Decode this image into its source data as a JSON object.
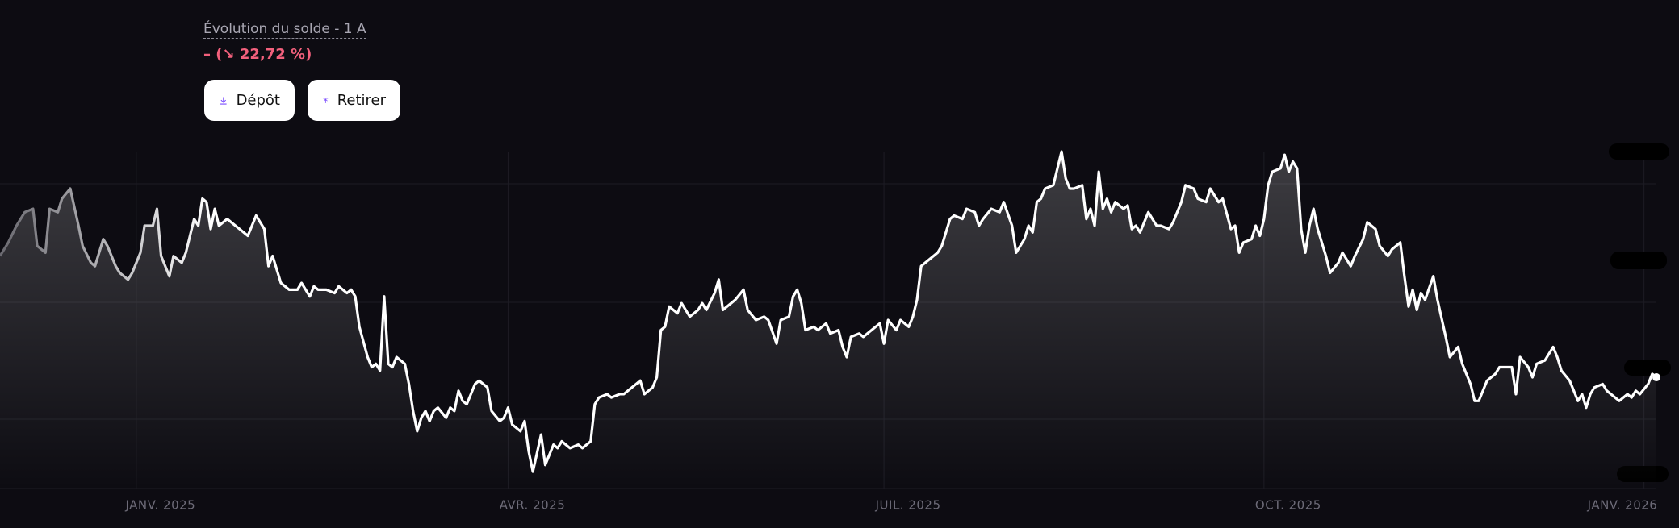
{
  "header": {
    "subtitle": "Évolution du solde - 1 A",
    "change": "– (↘ 22,72 %)"
  },
  "buttons": [
    {
      "label": "Dépôt"
    },
    {
      "label": "Retirer"
    }
  ],
  "chart_data": {
    "type": "line",
    "color": "#ffffff",
    "grid": true,
    "xlim": [
      -33,
      368
    ],
    "ylim": [
      0,
      100
    ],
    "xticks": [
      {
        "value": 0,
        "label": "JANV. 2025"
      },
      {
        "value": 90,
        "label": "AVR. 2025"
      },
      {
        "value": 181,
        "label": "JUIL. 2025"
      },
      {
        "value": 273,
        "label": "OCT. 2025"
      },
      {
        "value": 365,
        "label": "JANV. 2026"
      }
    ],
    "x": [
      -33,
      -31,
      -29,
      -27,
      -25,
      -24,
      -22,
      -21,
      -19,
      -18,
      -16,
      -14,
      -13,
      -11,
      -10,
      -8,
      -7,
      -5,
      -4,
      -2,
      -1,
      1,
      2,
      4,
      5,
      6,
      8,
      9,
      11,
      12,
      14,
      15,
      16,
      17,
      18,
      19,
      20,
      22,
      24,
      25,
      27,
      29,
      31,
      32,
      33,
      35,
      37,
      39,
      40,
      42,
      43,
      44,
      46,
      48,
      49,
      51,
      52,
      53,
      54,
      56,
      57,
      58,
      59,
      60,
      61,
      62,
      63,
      65,
      66,
      67,
      68,
      69,
      70,
      71,
      72,
      73,
      75,
      76,
      77,
      78,
      79,
      80,
      82,
      83,
      85,
      86,
      88,
      89,
      90,
      91,
      93,
      94,
      95,
      96,
      98,
      99,
      101,
      102,
      103,
      105,
      107,
      108,
      110,
      111,
      112,
      114,
      115,
      117,
      118,
      120,
      122,
      123,
      125,
      126,
      127,
      128,
      129,
      131,
      132,
      134,
      136,
      137,
      138,
      140,
      141,
      142,
      144,
      145,
      147,
      148,
      150,
      152,
      153,
      155,
      156,
      158,
      159,
      160,
      161,
      162,
      164,
      165,
      167,
      168,
      170,
      171,
      172,
      173,
      175,
      176,
      178,
      180,
      181,
      182,
      184,
      185,
      187,
      188,
      189,
      190,
      192,
      194,
      195,
      197,
      198,
      200,
      201,
      203,
      204,
      205,
      207,
      209,
      210,
      212,
      213,
      215,
      216,
      217,
      218,
      219,
      220,
      222,
      223,
      224,
      225,
      226,
      227,
      229,
      230,
      231,
      232,
      233,
      234,
      235,
      236,
      237,
      239,
      240,
      241,
      242,
      243,
      244,
      245,
      247,
      248,
      250,
      251,
      253,
      254,
      256,
      257,
      259,
      260,
      262,
      263,
      265,
      266,
      267,
      268,
      270,
      271,
      272,
      273,
      274,
      275,
      277,
      278,
      279,
      280,
      281,
      282,
      283,
      284,
      285,
      286,
      288,
      289,
      291,
      292,
      294,
      295,
      297,
      298,
      300,
      301,
      303,
      304,
      306,
      307,
      308,
      309,
      310,
      311,
      312,
      314,
      315,
      317,
      318,
      320,
      321,
      323,
      324,
      325,
      327,
      329,
      330,
      332,
      333,
      334,
      335,
      337,
      338,
      339,
      341,
      343,
      344,
      345,
      347,
      348,
      349,
      350,
      351,
      352,
      353,
      355,
      356,
      358,
      359,
      361,
      362,
      363,
      364,
      366,
      367,
      368
    ],
    "values": [
      69,
      73,
      78,
      82,
      83,
      72,
      70,
      83,
      82,
      86,
      89,
      78,
      72,
      67,
      66,
      74,
      72,
      66,
      64,
      62,
      64,
      70,
      78,
      78,
      83,
      69,
      63,
      69,
      67,
      70,
      80,
      78,
      86,
      85,
      77,
      83,
      78,
      80,
      78,
      77,
      75,
      81,
      77,
      66,
      69,
      61,
      59,
      59,
      61,
      57,
      60,
      59,
      59,
      58,
      60,
      58,
      59,
      57,
      48,
      39,
      36,
      37,
      35,
      57,
      37,
      36,
      39,
      37,
      31,
      23,
      17,
      21,
      23,
      20,
      23,
      24,
      21,
      24,
      23,
      29,
      26,
      25,
      31,
      32,
      30,
      23,
      20,
      21,
      24,
      19,
      17,
      20,
      11,
      5,
      16,
      7,
      13,
      12,
      14,
      12,
      13,
      12,
      14,
      25,
      27,
      28,
      27,
      28,
      28,
      30,
      32,
      28,
      30,
      33,
      47,
      48,
      54,
      52,
      55,
      51,
      53,
      55,
      53,
      58,
      62,
      53,
      55,
      56,
      59,
      53,
      50,
      51,
      50,
      43,
      50,
      51,
      57,
      59,
      55,
      47,
      48,
      47,
      49,
      46,
      47,
      42,
      39,
      45,
      46,
      45,
      47,
      49,
      43,
      50,
      47,
      50,
      48,
      51,
      56,
      66,
      68,
      70,
      72,
      80,
      81,
      80,
      83,
      82,
      78,
      80,
      83,
      82,
      85,
      78,
      70,
      74,
      78,
      76,
      85,
      86,
      89,
      90,
      95,
      100,
      92,
      89,
      89,
      90,
      80,
      83,
      78,
      94,
      83,
      86,
      82,
      85,
      83,
      84,
      77,
      78,
      76,
      79,
      82,
      78,
      78,
      77,
      79,
      85,
      90,
      89,
      86,
      85,
      89,
      85,
      86,
      77,
      78,
      70,
      73,
      74,
      78,
      75,
      80,
      90,
      94,
      95,
      99,
      94,
      97,
      95,
      77,
      70,
      78,
      83,
      77,
      69,
      64,
      67,
      70,
      66,
      69,
      74,
      79,
      77,
      72,
      69,
      71,
      73,
      63,
      54,
      59,
      53,
      58,
      56,
      63,
      56,
      45,
      39,
      42,
      37,
      31,
      26,
      26,
      32,
      34,
      36,
      36,
      36,
      28,
      39,
      36,
      33,
      37,
      38,
      42,
      39,
      35,
      32,
      29,
      26,
      28,
      24,
      28,
      30,
      31,
      29,
      27,
      26,
      28,
      27,
      29,
      28,
      31,
      34,
      33
    ]
  }
}
